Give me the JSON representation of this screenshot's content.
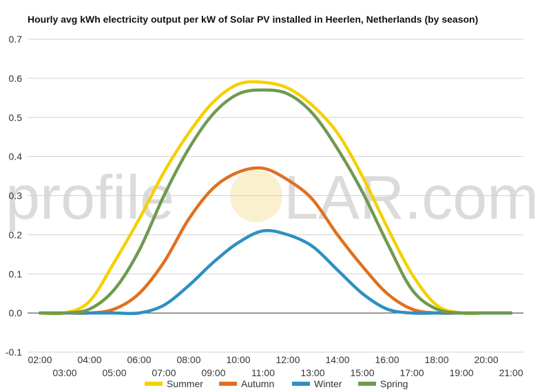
{
  "chart_data": {
    "type": "line",
    "title": "Hourly avg kWh electricity output per kW of Solar PV installed in Heerlen, Netherlands (by season)",
    "xlabel": "",
    "ylabel": "",
    "x": [
      "02:00",
      "03:00",
      "04:00",
      "05:00",
      "06:00",
      "07:00",
      "08:00",
      "09:00",
      "10:00",
      "11:00",
      "12:00",
      "13:00",
      "14:00",
      "15:00",
      "16:00",
      "17:00",
      "18:00",
      "19:00",
      "20:00",
      "21:00"
    ],
    "ylim": [
      -0.1,
      0.7
    ],
    "yticks": [
      "-0.1",
      "0.0",
      "0.1",
      "0.2",
      "0.3",
      "0.4",
      "0.5",
      "0.6",
      "0.7"
    ],
    "grid": true,
    "legend_position": "bottom",
    "series": [
      {
        "name": "Summer",
        "color": "#f5d000",
        "values": [
          0,
          0,
          0.03,
          0.13,
          0.24,
          0.36,
          0.46,
          0.54,
          0.585,
          0.59,
          0.575,
          0.53,
          0.46,
          0.35,
          0.22,
          0.1,
          0.02,
          0,
          0,
          0
        ]
      },
      {
        "name": "Autumn",
        "color": "#e07020",
        "values": [
          0,
          0,
          0,
          0.01,
          0.05,
          0.13,
          0.24,
          0.32,
          0.36,
          0.37,
          0.34,
          0.29,
          0.2,
          0.12,
          0.05,
          0.01,
          0,
          0,
          0,
          0
        ]
      },
      {
        "name": "Winter",
        "color": "#2e90c0",
        "values": [
          0,
          0,
          0,
          0,
          0,
          0.02,
          0.07,
          0.13,
          0.18,
          0.21,
          0.2,
          0.17,
          0.11,
          0.05,
          0.01,
          0,
          0,
          0,
          0,
          0
        ]
      },
      {
        "name": "Spring",
        "color": "#6f9a50",
        "values": [
          0,
          0,
          0.01,
          0.06,
          0.16,
          0.3,
          0.42,
          0.51,
          0.56,
          0.57,
          0.56,
          0.51,
          0.42,
          0.31,
          0.18,
          0.06,
          0.01,
          0,
          0,
          0
        ]
      }
    ]
  },
  "watermark": {
    "text_left": "profile",
    "sun_letter": "S",
    "text_right": "LAR.com"
  }
}
